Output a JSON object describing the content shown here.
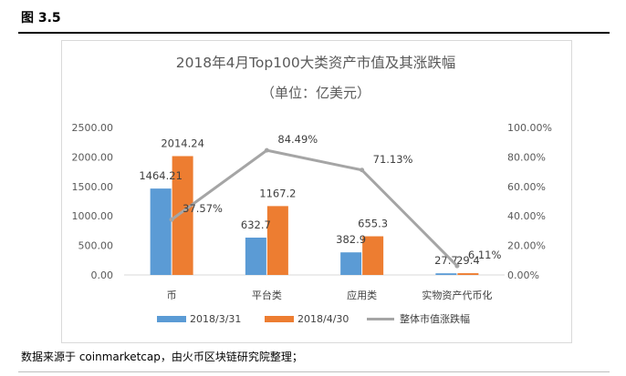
{
  "figure_label": "图 3.5",
  "source_note": "数据来源于 coinmarketcap，由火币区块链研究院整理；",
  "colors": {
    "series1": "#5b9bd5",
    "series2": "#ed7d31",
    "line": "#a5a5a5",
    "grid": "#d9d9d9",
    "text": "#595959"
  },
  "chart_data": {
    "type": "bar",
    "title": "2018年4月Top100大类资产市值及其涨跌幅",
    "subtitle": "（单位：亿美元）",
    "categories": [
      "币",
      "平台类",
      "应用类",
      "实物资产代币化"
    ],
    "series": [
      {
        "name": "2018/3/31",
        "type": "bar",
        "axis": "left",
        "values": [
          1464.21,
          632.7,
          382.9,
          27.7
        ]
      },
      {
        "name": "2018/4/30",
        "type": "bar",
        "axis": "left",
        "values": [
          2014.24,
          1167.2,
          655.3,
          29.4
        ]
      },
      {
        "name": "整体市值涨跌幅",
        "type": "line",
        "axis": "right",
        "values": [
          37.57,
          84.49,
          71.13,
          6.11
        ]
      }
    ],
    "data_labels": {
      "2018/3/31": [
        "1464.21",
        "632.7",
        "382.9",
        "27.7"
      ],
      "2018/4/30": [
        "2014.24",
        "1167.2",
        "655.3",
        "29.4"
      ],
      "整体市值涨跌幅": [
        "37.57%",
        "84.49%",
        "71.13%",
        "6.11%"
      ]
    },
    "y_left": {
      "min": 0,
      "max": 2500,
      "ticks": [
        "0.00",
        "500.00",
        "1000.00",
        "1500.00",
        "2000.00",
        "2500.00"
      ]
    },
    "y_right": {
      "min": 0,
      "max": 100,
      "ticks": [
        "0.00%",
        "20.00%",
        "40.00%",
        "60.00%",
        "80.00%",
        "100.00%"
      ]
    },
    "grid": false,
    "legend_position": "bottom"
  }
}
